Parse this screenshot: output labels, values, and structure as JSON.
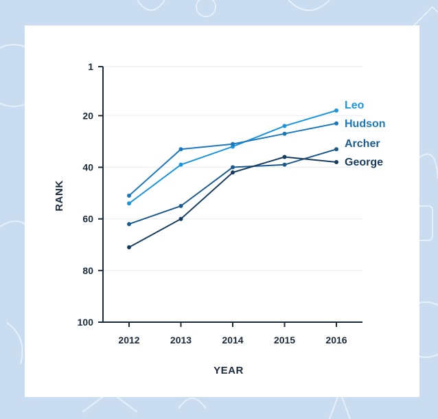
{
  "colors": {
    "background": "#c9dcf0",
    "pattern": "#e7f0fa",
    "card": "#ffffff",
    "axis": "#1b2a3a",
    "grid": "#eef2f6"
  },
  "chart_data": {
    "type": "line",
    "title": "",
    "xlabel": "YEAR",
    "ylabel": "RANK",
    "x": [
      2012,
      2013,
      2014,
      2015,
      2016
    ],
    "x_tick_labels": [
      "2012",
      "2013",
      "2014",
      "2015",
      "2016"
    ],
    "y_ticks": [
      1,
      20,
      40,
      60,
      80,
      100
    ],
    "y_tick_labels": [
      "1",
      "20",
      "40",
      "60",
      "80",
      "100"
    ],
    "ylim": [
      1,
      100
    ],
    "y_inverted": true,
    "grid": true,
    "legend": "direct labels at line ends (right)",
    "series": [
      {
        "name": "Leo",
        "color": "#1a96de",
        "values": [
          54,
          39,
          32,
          24,
          18
        ]
      },
      {
        "name": "Hudson",
        "color": "#1c78bd",
        "values": [
          51,
          33,
          31,
          27,
          23
        ]
      },
      {
        "name": "Archer",
        "color": "#1b5a8f",
        "values": [
          62,
          55,
          40,
          39,
          33
        ]
      },
      {
        "name": "George",
        "color": "#163b5f",
        "values": [
          71,
          60,
          42,
          36,
          38
        ]
      }
    ]
  }
}
